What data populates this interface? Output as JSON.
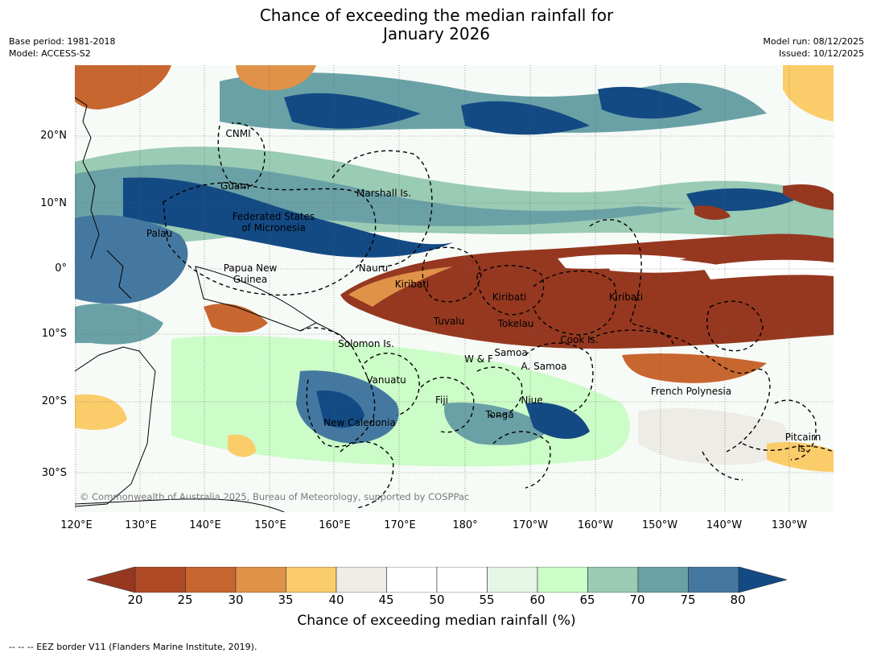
{
  "title": {
    "line1": "Chance of exceeding the median rainfall for",
    "line2": "January 2026"
  },
  "meta_left": {
    "base_period": "Base period: 1981-2018",
    "model": "Model: ACCESS-S2"
  },
  "meta_right": {
    "model_run": "Model run: 08/12/2025",
    "issued": "Issued: 10/12/2025"
  },
  "map": {
    "lat_labels": [
      "20°N",
      "10°N",
      "0°",
      "10°S",
      "20°S",
      "30°S"
    ],
    "lon_labels": [
      "120°E",
      "130°E",
      "140°E",
      "150°E",
      "160°E",
      "170°E",
      "180°",
      "170°W",
      "160°W",
      "150°W",
      "140°W",
      "130°W"
    ],
    "regions": {
      "cnmi": "CNMI",
      "guam": "Guam",
      "marshall": "Marshall Is.",
      "fsm_1": "Federated States",
      "fsm_2": "of Micronesia",
      "palau": "Palau",
      "png_1": "Papua New",
      "png_2": "Guinea",
      "nauru": "Nauru",
      "kiribati_w": "Kiribati",
      "kiribati_c": "Kiribati",
      "kiribati_e": "Kiribati",
      "tuvalu": "Tuvalu",
      "tokelau": "Tokelau",
      "cook": "Cook Is.",
      "solomon": "Solomon Is.",
      "wf": "W & F",
      "samoa": "Samoa",
      "amsamoa": "A. Samoa",
      "vanuatu": "Vanuatu",
      "fiji": "Fiji",
      "niue": "Niue",
      "tonga": "Tonga",
      "newcal": "New Caledonia",
      "frpoly": "French Polynesia",
      "pitcairn_1": "Pitcairn",
      "pitcairn_2": "Is."
    },
    "copyright": "© Commonwealth of Australia 2025, Bureau of Meteorology, supported by COSPPac"
  },
  "colorbar": {
    "ticks": [
      "20",
      "25",
      "30",
      "35",
      "40",
      "45",
      "50",
      "55",
      "60",
      "65",
      "70",
      "75",
      "80"
    ],
    "colors": [
      "#963820",
      "#b04a26",
      "#c86630",
      "#e09248",
      "#fbcc6a",
      "#eeece6",
      "#ffffff",
      "#ffffff",
      "#e6f6e6",
      "#ccfcc8",
      "#9acbb4",
      "#6aa1a6",
      "#4578a0",
      "#134a84"
    ],
    "label": "Chance of exceeding median rainfall (%)"
  },
  "footnote": "--  --  -- EEZ border V11 (Flanders Marine Institute, 2019)."
}
